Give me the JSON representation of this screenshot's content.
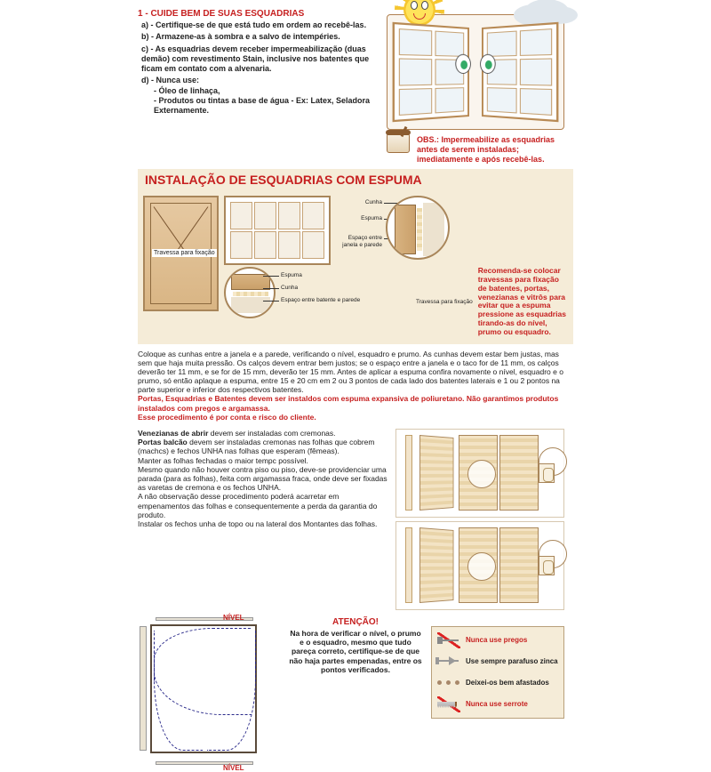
{
  "colors": {
    "accent": "#c62020",
    "beige": "#f5ecd8",
    "wood": "#b88a55"
  },
  "sec1": {
    "title": "1 - CUIDE BEM DE SUAS ESQUADRIAS",
    "a": "a) - Certifique-se de que está tudo em ordem ao recebê-las.",
    "b": "b) - Armazene-as à sombra e a salvo de intempéries.",
    "c": "c) - As esquadrias devem receber impermeabilização (duas demão) com revestimento Stain, inclusive nos batentes que ficam em contato com a alvenaria.",
    "d": "d) - Nunca use:",
    "d1": "- Óleo de linhaça,",
    "d2": "- Produtos ou tintas a base de água - Ex: Latex, Seladora Externamente.",
    "obs": "OBS.: Impermeabilize as esquadrias antes de serem instaladas; imediatamente e após recebê-las."
  },
  "headline": "INSTALAÇÃO DE ESQUADRIAS COM ESPUMA",
  "sec2": {
    "travessa": "Travessa para fixação",
    "closeup": {
      "cunha": "Cunha",
      "espuma": "Espuma",
      "espaco_jp": "Espaço entre janela e parede",
      "espaco_bp": "Espaço entre batente e parede",
      "travessa_fix": "Travessa para fixação"
    },
    "recomenda": "Recomenda-se colocar travessas para fixação de batentes, portas, venezianas e vitrôs para evitar que a espuma pressione as esquadrias tirando-as do nível, prumo ou esquadro.",
    "body": "Coloque as cunhas entre a janela e a parede, verificando o nível, esquadro e prumo. As cunhas devem estar bem justas, mas sem que haja muita pressão. Os calços devem entrar bem justos; se o espaço entre a janela e o taco for de 11 mm, os calços deverão ter 11 mm, e se for de 15 mm, deverão ter 15 mm. Antes de aplicar a espuma confira novamente o nível, esquadro e o prumo, só então aplaque a espuma, entre 15 e 20 cm em 2 ou 3 pontos de cada lado dos batentes laterais e 1 ou 2 pontos na parte superior e inferior dos respectivos batentes.",
    "red1": "Portas, Esquadrias e Batentes devem ser instaldos com espuma expansiva de poliuretano. Não garantimos produtos instalados com pregos e argamassa.",
    "red2": "Esse procedimento é por conta e risco do cliente."
  },
  "sec3": {
    "p1a": "Venezianas de abrir",
    "p1b": " devem ser instaladas com cremonas.",
    "p2a": "Portas balcão",
    "p2b": " devem ser instaladas cremonas nas folhas que cobrem (machcs) e fechos UNHA nas folhas que esperam (fêmeas).",
    "p3": "Manter as folhas fechadas o maior tempc possível.",
    "p4": "Mesmo quando não houver contra piso ou piso, deve-se providenciar uma parada (para as folhas), feita com argamassa fraca, onde deve ser fixadas as varetas de cremona e os fechos UNHA.",
    "p5": "A não observação desse procedimento poderá acarretar em empenamentos das folhas e consequentemente a perda da garantia do produto.",
    "p6": "Instalar os fechos unha de topo ou na lateral dos Montantes das folhas."
  },
  "sec4": {
    "nivel": "NÍVEL",
    "atencao_t": "ATENÇÃO!",
    "atencao_p": "Na hora de verificar o nível, o prumo e o esquadro, mesmo que tudo pareça correto, certifique-se de que não haja partes empenadas, entre os pontos verificados.",
    "warn1": "Nunca use pregos",
    "warn2": "Use sempre parafuso zinca",
    "warn3": "Deixei-os bem afastados",
    "warn4": "Nunca use serrote"
  }
}
